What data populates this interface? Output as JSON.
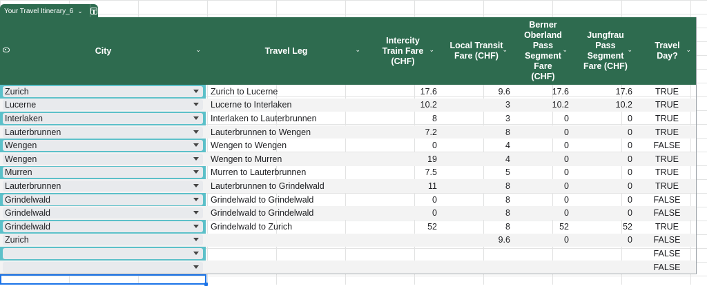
{
  "table": {
    "name": "Your Travel Itinerary_6",
    "columns": [
      {
        "key": "city",
        "label": "City"
      },
      {
        "key": "leg",
        "label": "Travel Leg"
      },
      {
        "key": "intercity",
        "label": "Intercity\nTrain Fare\n(CHF)"
      },
      {
        "key": "local",
        "label": "Local Transit\nFare (CHF)"
      },
      {
        "key": "berner",
        "label": "Berner\nOberland\nPass\nSegment\nFare\n(CHF)"
      },
      {
        "key": "jungfrau",
        "label": "Jungfrau\nPass\nSegment\nFare (CHF)"
      },
      {
        "key": "travelday",
        "label": "Travel\nDay?"
      }
    ],
    "rows": [
      {
        "city": "Zurich",
        "leg": "Zurich to Lucerne",
        "intercity": "17.6",
        "local": "9.6",
        "berner": "17.6",
        "jungfrau": "17.6",
        "travelday": "TRUE"
      },
      {
        "city": "Lucerne",
        "leg": "Lucerne to Interlaken",
        "intercity": "10.2",
        "local": "3",
        "berner": "10.2",
        "jungfrau": "10.2",
        "travelday": "TRUE"
      },
      {
        "city": "Interlaken",
        "leg": "Interlaken to Lauterbrunnen",
        "intercity": "8",
        "local": "3",
        "berner": "0",
        "jungfrau": "0",
        "travelday": "TRUE"
      },
      {
        "city": "Lauterbrunnen",
        "leg": "Lauterbrunnen to Wengen",
        "intercity": "7.2",
        "local": "8",
        "berner": "0",
        "jungfrau": "0",
        "travelday": "TRUE"
      },
      {
        "city": "Wengen",
        "leg": "Wengen to Wengen",
        "intercity": "0",
        "local": "4",
        "berner": "0",
        "jungfrau": "0",
        "travelday": "FALSE"
      },
      {
        "city": "Wengen",
        "leg": "Wengen to Murren",
        "intercity": "19",
        "local": "4",
        "berner": "0",
        "jungfrau": "0",
        "travelday": "TRUE"
      },
      {
        "city": "Murren",
        "leg": "Murren to Lauterbrunnen",
        "intercity": "7.5",
        "local": "5",
        "berner": "0",
        "jungfrau": "0",
        "travelday": "TRUE"
      },
      {
        "city": "Lauterbrunnen",
        "leg": "Lauterbrunnen to Grindelwald",
        "intercity": "11",
        "local": "8",
        "berner": "0",
        "jungfrau": "0",
        "travelday": "TRUE"
      },
      {
        "city": "Grindelwald",
        "leg": "Grindelwald to Grindelwald",
        "intercity": "0",
        "local": "8",
        "berner": "0",
        "jungfrau": "0",
        "travelday": "FALSE"
      },
      {
        "city": "Grindelwald",
        "leg": "Grindelwald to Grindelwald",
        "intercity": "0",
        "local": "8",
        "berner": "0",
        "jungfrau": "0",
        "travelday": "FALSE"
      },
      {
        "city": "Grindelwald",
        "leg": "Grindelwald to Zurich",
        "intercity": "52",
        "local": "8",
        "berner": "52",
        "jungfrau": "52",
        "travelday": "TRUE"
      },
      {
        "city": "Zurich",
        "leg": "",
        "intercity": "",
        "local": "9.6",
        "berner": "0",
        "jungfrau": "0",
        "travelday": "FALSE"
      },
      {
        "city": "",
        "leg": "",
        "intercity": "",
        "local": "",
        "berner": "",
        "jungfrau": "",
        "travelday": "FALSE"
      },
      {
        "city": "",
        "leg": "",
        "intercity": "",
        "local": "",
        "berner": "",
        "jungfrau": "",
        "travelday": "FALSE"
      }
    ]
  },
  "colors": {
    "header_bg": "#2e6b4f",
    "city_band": "#5cc0c9",
    "chip_bg": "#e8eaed",
    "selection": "#1a73e8"
  },
  "icons": {
    "tab_menu": "chevron-down-icon",
    "tab_view": "table-grid-icon",
    "row_select": "row-select-icon",
    "column_menu": "chevron-down-icon",
    "city_dropdown": "dropdown-arrow-icon"
  }
}
